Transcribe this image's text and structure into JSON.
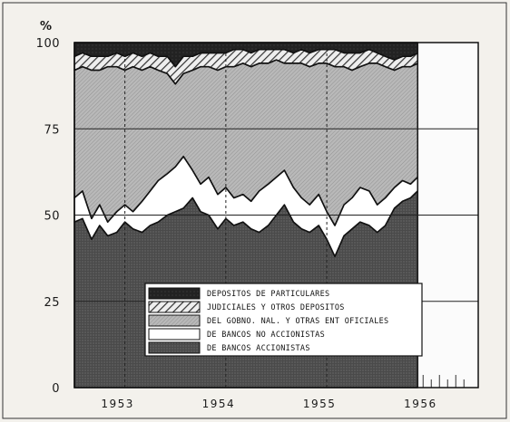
{
  "chart_data": {
    "type": "area",
    "stacked": true,
    "unit_label": "%",
    "ylim": [
      0,
      100
    ],
    "y_ticks": [
      0,
      25,
      50,
      75,
      100
    ],
    "x_range": [
      1952.5,
      1956.5
    ],
    "x_ticks": [
      {
        "label": "1953",
        "value": 1953
      },
      {
        "label": "1954",
        "value": 1954
      },
      {
        "label": "1955",
        "value": 1955
      },
      {
        "label": "1956",
        "value": 1956
      }
    ],
    "data_end": 1955.9,
    "gridlines": true,
    "legend_position": "bottom-center",
    "x": [
      1952.5,
      1952.58,
      1952.67,
      1952.75,
      1952.83,
      1952.92,
      1953.0,
      1953.08,
      1953.17,
      1953.25,
      1953.33,
      1953.42,
      1953.5,
      1953.58,
      1953.67,
      1953.75,
      1953.83,
      1953.92,
      1954.0,
      1954.08,
      1954.17,
      1954.25,
      1954.33,
      1954.42,
      1954.5,
      1954.58,
      1954.67,
      1954.75,
      1954.83,
      1954.92,
      1955.0,
      1955.08,
      1955.17,
      1955.25,
      1955.33,
      1955.42,
      1955.5,
      1955.58,
      1955.67,
      1955.75,
      1955.83,
      1955.9
    ],
    "series": [
      {
        "name": "DE BANCOS ACCIONISTAS",
        "pattern": "dark-dots",
        "values": [
          48,
          49,
          43,
          47,
          44,
          45,
          48,
          46,
          45,
          47,
          48,
          50,
          51,
          52,
          55,
          51,
          50,
          46,
          49,
          47,
          48,
          46,
          45,
          47,
          50,
          53,
          48,
          46,
          45,
          47,
          43,
          38,
          44,
          46,
          48,
          47,
          45,
          47,
          52,
          54,
          55,
          57
        ]
      },
      {
        "name": "DE BANCOS NO ACCIONISTAS",
        "pattern": "white",
        "values": [
          55,
          57,
          49,
          53,
          48,
          51,
          53,
          51,
          54,
          57,
          60,
          62,
          64,
          67,
          63,
          59,
          61,
          56,
          58,
          55,
          56,
          54,
          57,
          59,
          61,
          63,
          58,
          55,
          53,
          56,
          51,
          47,
          53,
          55,
          58,
          57,
          53,
          55,
          58,
          60,
          59,
          61
        ]
      },
      {
        "name": "DEL GOBNO. NAL. Y OTRAS ENT OFICIALES",
        "pattern": "light-hatch",
        "values": [
          92,
          93,
          92,
          92,
          93,
          93,
          92,
          93,
          92,
          93,
          92,
          91,
          88,
          91,
          92,
          93,
          93,
          92,
          93,
          93,
          94,
          93,
          94,
          94,
          95,
          94,
          94,
          94,
          93,
          94,
          94,
          93,
          93,
          92,
          93,
          94,
          94,
          93,
          92,
          93,
          93,
          94
        ]
      },
      {
        "name": "JUDICIALES Y OTROS DEPOSITOS",
        "pattern": "diagonal",
        "values": [
          96,
          97,
          96,
          96,
          96,
          97,
          96,
          97,
          96,
          97,
          96,
          96,
          93,
          96,
          96,
          97,
          97,
          97,
          97,
          98,
          98,
          97,
          98,
          98,
          98,
          98,
          97,
          98,
          97,
          98,
          98,
          98,
          97,
          97,
          97,
          98,
          97,
          96,
          95,
          96,
          96,
          97
        ]
      },
      {
        "name": "DEPOSITOS DE PARTICULARES",
        "pattern": "black",
        "values": [
          100,
          100,
          100,
          100,
          100,
          100,
          100,
          100,
          100,
          100,
          100,
          100,
          100,
          100,
          100,
          100,
          100,
          100,
          100,
          100,
          100,
          100,
          100,
          100,
          100,
          100,
          100,
          100,
          100,
          100,
          100,
          100,
          100,
          100,
          100,
          100,
          100,
          100,
          100,
          100,
          100,
          100
        ]
      }
    ],
    "legend": [
      {
        "label": "DEPOSITOS DE PARTICULARES",
        "pattern": "black"
      },
      {
        "label": "JUDICIALES Y OTROS DEPOSITOS",
        "pattern": "diagonal"
      },
      {
        "label": "DEL GOBNO. NAL. Y OTRAS ENT OFICIALES",
        "pattern": "light-hatch"
      },
      {
        "label": "DE BANCOS NO ACCIONISTAS",
        "pattern": "white"
      },
      {
        "label": "DE BANCOS ACCIONISTAS",
        "pattern": "dark-dots"
      }
    ],
    "colors": {
      "ink": "#1a1a1a",
      "paper": "#f3f1ec"
    }
  }
}
